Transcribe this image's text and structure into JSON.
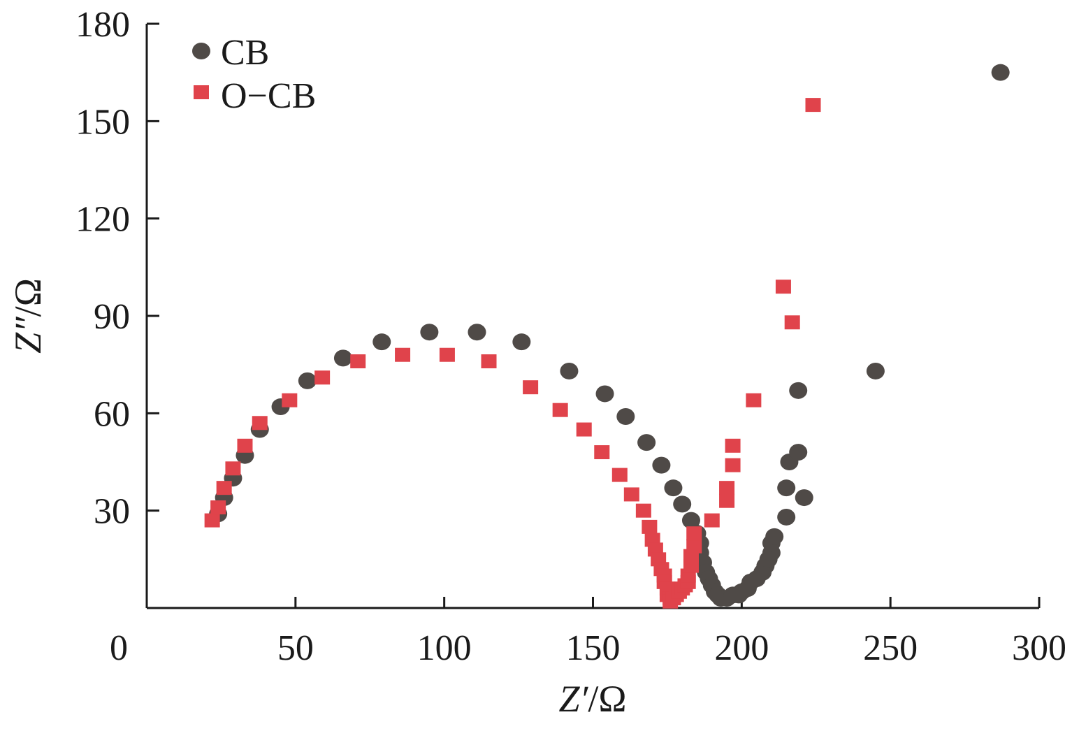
{
  "chart_data": {
    "type": "scatter",
    "title": "",
    "xlabel": {
      "italic": "Z′",
      "unit": "/Ω"
    },
    "ylabel": {
      "italic": "Z″",
      "unit": "/Ω"
    },
    "xlim": [
      0,
      300
    ],
    "ylim": [
      0,
      180
    ],
    "grid": false,
    "legend_position": "top-left",
    "x_ticks": [
      0,
      50,
      100,
      150,
      200,
      250,
      300
    ],
    "y_ticks": [
      30,
      60,
      90,
      120,
      150,
      180
    ],
    "series": [
      {
        "name": "CB",
        "marker": "circle",
        "color": "#4f4a47",
        "points": [
          [
            24,
            29
          ],
          [
            26,
            34
          ],
          [
            29,
            40
          ],
          [
            33,
            47
          ],
          [
            38,
            55
          ],
          [
            45,
            62
          ],
          [
            54,
            70
          ],
          [
            66,
            77
          ],
          [
            79,
            82
          ],
          [
            95,
            85
          ],
          [
            111,
            85
          ],
          [
            126,
            82
          ],
          [
            142,
            73
          ],
          [
            154,
            66
          ],
          [
            161,
            59
          ],
          [
            168,
            51
          ],
          [
            173,
            44
          ],
          [
            177,
            37
          ],
          [
            180,
            32
          ],
          [
            183,
            27
          ],
          [
            185,
            23
          ],
          [
            186,
            20
          ],
          [
            186,
            17
          ],
          [
            187,
            14
          ],
          [
            188,
            11
          ],
          [
            189,
            9
          ],
          [
            190,
            7
          ],
          [
            191,
            5
          ],
          [
            192,
            4
          ],
          [
            193,
            3
          ],
          [
            195,
            3
          ],
          [
            197,
            4
          ],
          [
            199,
            4
          ],
          [
            200,
            5
          ],
          [
            202,
            6
          ],
          [
            203,
            8
          ],
          [
            205,
            9
          ],
          [
            207,
            11
          ],
          [
            208,
            13
          ],
          [
            209,
            15
          ],
          [
            210,
            17
          ],
          [
            210,
            20
          ],
          [
            211,
            22
          ],
          [
            215,
            28
          ],
          [
            215,
            37
          ],
          [
            216,
            45
          ],
          [
            219,
            48
          ],
          [
            219,
            67
          ],
          [
            221,
            34
          ],
          [
            245,
            73
          ],
          [
            287,
            165
          ]
        ]
      },
      {
        "name": "O−CB",
        "marker": "square",
        "color": "#e0434b",
        "points": [
          [
            22,
            27
          ],
          [
            24,
            31
          ],
          [
            26,
            37
          ],
          [
            29,
            43
          ],
          [
            33,
            50
          ],
          [
            38,
            57
          ],
          [
            48,
            64
          ],
          [
            59,
            71
          ],
          [
            71,
            76
          ],
          [
            86,
            78
          ],
          [
            101,
            78
          ],
          [
            115,
            76
          ],
          [
            129,
            68
          ],
          [
            139,
            61
          ],
          [
            147,
            55
          ],
          [
            153,
            48
          ],
          [
            159,
            41
          ],
          [
            163,
            35
          ],
          [
            167,
            30
          ],
          [
            169,
            25
          ],
          [
            170,
            21
          ],
          [
            171,
            18
          ],
          [
            172,
            15
          ],
          [
            173,
            12
          ],
          [
            174,
            10
          ],
          [
            174,
            8
          ],
          [
            175,
            6
          ],
          [
            175,
            4
          ],
          [
            176,
            3
          ],
          [
            176,
            2
          ],
          [
            177,
            3
          ],
          [
            178,
            4
          ],
          [
            179,
            5
          ],
          [
            180,
            6
          ],
          [
            181,
            7
          ],
          [
            182,
            8
          ],
          [
            182,
            10
          ],
          [
            183,
            13
          ],
          [
            183,
            16
          ],
          [
            184,
            19
          ],
          [
            184,
            23
          ],
          [
            190,
            27
          ],
          [
            195,
            33
          ],
          [
            195,
            37
          ],
          [
            197,
            44
          ],
          [
            197,
            50
          ],
          [
            204,
            64
          ],
          [
            214,
            99
          ],
          [
            217,
            88
          ],
          [
            224,
            155
          ]
        ]
      }
    ]
  }
}
